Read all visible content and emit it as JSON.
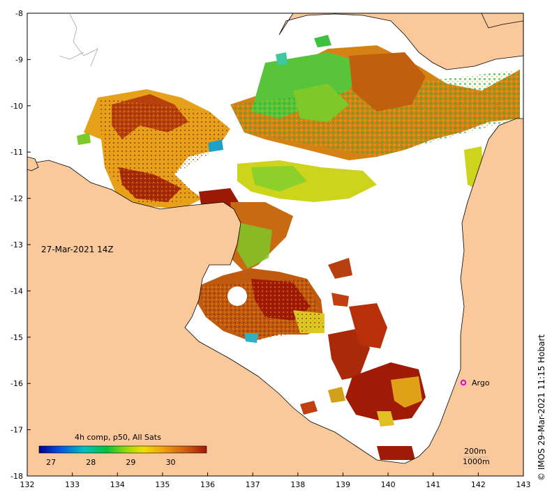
{
  "map": {
    "timestamp_label": "27-Mar-2021 14Z",
    "credit": "©  IMOS 29-Mar-2021 11:15 Hobart",
    "argo_label": "Argo",
    "depth_contour_200": "200m",
    "depth_contour_1000": "1000m",
    "x_ticks": [
      "132",
      "133",
      "134",
      "135",
      "136",
      "137",
      "138",
      "139",
      "140",
      "141",
      "142",
      "143"
    ],
    "y_ticks": [
      "-8",
      "-9",
      "-10",
      "-11",
      "-12",
      "-13",
      "-14",
      "-15",
      "-16",
      "-17",
      "-18"
    ],
    "colors": {
      "land": "#f9c89b",
      "ocean_nodata": "#ffffff",
      "argo_marker": "#e000e0"
    }
  },
  "colorbar": {
    "title": "4h comp, p50, All Sats",
    "tick_labels": [
      "27",
      "28",
      "29",
      "30"
    ],
    "range": [
      26.7,
      30.9
    ],
    "stops": [
      "#00008b",
      "#0050e0",
      "#00c0c0",
      "#00c040",
      "#9ad80a",
      "#f0e000",
      "#f0a010",
      "#d06010",
      "#a01808"
    ]
  }
}
